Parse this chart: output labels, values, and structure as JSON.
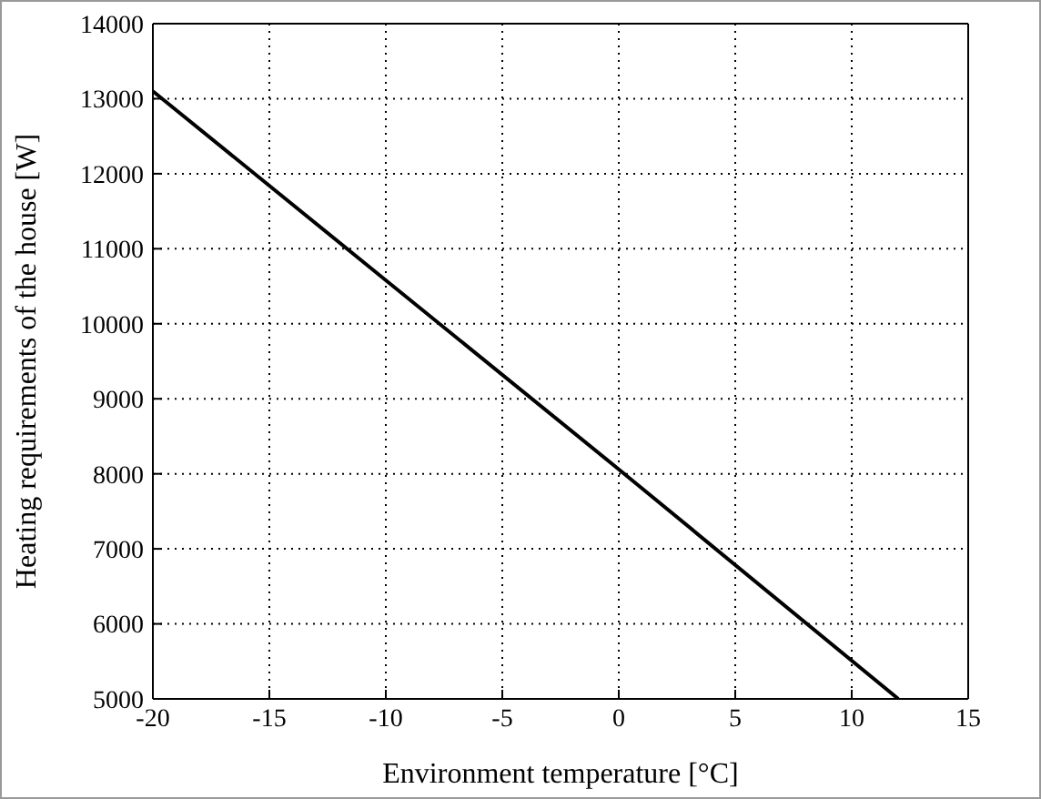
{
  "chart_data": {
    "type": "line",
    "xlabel": "Environment temperature [°C]",
    "ylabel": "Heating requirements of the house [W]",
    "x": [
      -20,
      -10,
      0,
      12
    ],
    "series": [
      {
        "color": "#000000",
        "values": [
          13100,
          10580,
          8060,
          5000
        ]
      }
    ],
    "xlim": [
      -20,
      15
    ],
    "xticks": [
      -20,
      -15,
      -10,
      -5,
      0,
      5,
      10,
      15
    ],
    "ylim": [
      5000,
      14000
    ],
    "yticks": [
      5000,
      6000,
      7000,
      8000,
      9000,
      10000,
      11000,
      12000,
      13000,
      14000
    ],
    "grid": true,
    "marker": "none",
    "line_style": "solid"
  }
}
